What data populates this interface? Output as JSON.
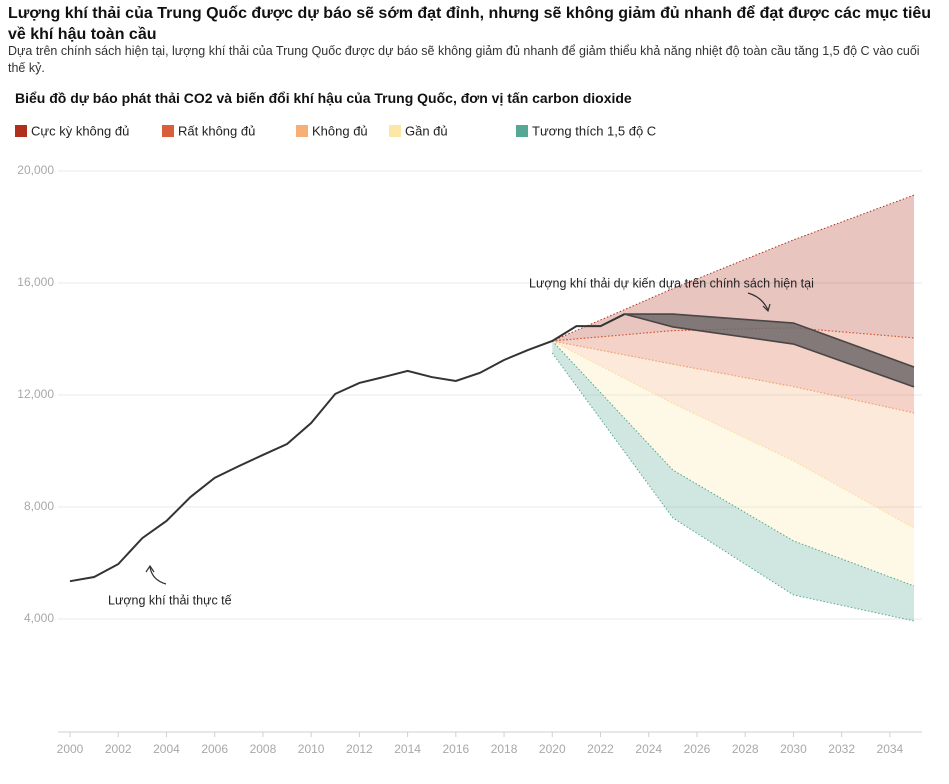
{
  "chart_data": {
    "type": "line",
    "title": "Lượng khí thải của Trung Quốc được dự báo sẽ sớm đạt đỉnh, nhưng sẽ không giảm đủ nhanh để đạt được các mục tiêu về khí hậu toàn cầu",
    "subtitle": "Dựa trên chính sách hiện tại, lượng khí thải của Trung Quốc được dự báo sẽ không giảm đủ nhanh để giảm thiểu khả năng nhiệt độ toàn cầu tăng 1,5 độ C vào cuối thế kỷ.",
    "chart_title": "Biểu đồ dự báo phát thải CO2 và biến đổi khí hậu của Trung Quốc, đơn vị tấn carbon dioxide",
    "xlim": [
      2000,
      2035
    ],
    "xticks": [
      2000,
      2002,
      2004,
      2006,
      2008,
      2010,
      2012,
      2014,
      2016,
      2018,
      2020,
      2022,
      2024,
      2026,
      2028,
      2030,
      2032,
      2034
    ],
    "ylim": [
      0,
      20000
    ],
    "yticks": [
      {
        "value": 4000,
        "label": "4,000"
      },
      {
        "value": 8000,
        "label": "8,000"
      },
      {
        "value": 12000,
        "label": "12,000"
      },
      {
        "value": 16000,
        "label": "16,000"
      },
      {
        "value": 20000,
        "label": "20,000"
      }
    ],
    "grid": true,
    "series": [
      {
        "name": "Lượng khí thải thực tế",
        "color": "#333333",
        "x": [
          2000,
          2001,
          2002,
          2003,
          2004,
          2005,
          2006,
          2007,
          2008,
          2009,
          2010,
          2011,
          2012,
          2013,
          2014,
          2015,
          2016,
          2017,
          2018,
          2019,
          2020,
          2021,
          2022,
          2023
        ],
        "values": [
          5350,
          5500,
          5960,
          6890,
          7500,
          8360,
          9040,
          9460,
          9860,
          10250,
          11000,
          12040,
          12430,
          12640,
          12860,
          12640,
          12500,
          12790,
          13250,
          13610,
          13930,
          14460,
          14460,
          14890
        ]
      }
    ],
    "policy_band": {
      "name": "Lượng khí thải dự kiến dựa trên chính sách hiện tại",
      "color": "#6f6a6a",
      "x": [
        2023,
        2025,
        2030,
        2035
      ],
      "high": [
        14890,
        14890,
        14570,
        13000
      ],
      "low": [
        14890,
        14430,
        13820,
        12290
      ]
    },
    "bands": [
      {
        "name": "Cực kỳ không đủ",
        "color": "#b0301c",
        "x": [
          2020,
          2025,
          2030,
          2035
        ],
        "high": [
          13930,
          15800,
          17540,
          19140
        ],
        "low": [
          13930,
          14300,
          14400,
          14040
        ]
      },
      {
        "name": "Rất không đủ",
        "color": "#d95f3a",
        "x": [
          2020,
          2025,
          2030,
          2035
        ],
        "high": [
          13930,
          14300,
          14400,
          14040
        ],
        "low": [
          13930,
          13100,
          12300,
          11360
        ]
      },
      {
        "name": "Không đủ",
        "color": "#f6b076",
        "x": [
          2020,
          2025,
          2030,
          2035
        ],
        "high": [
          13930,
          13100,
          12300,
          11360
        ],
        "low": [
          13930,
          11700,
          9650,
          7250
        ]
      },
      {
        "name": "Gần đủ",
        "color": "#fde7a6",
        "x": [
          2020,
          2025,
          2030,
          2035
        ],
        "high": [
          13930,
          11700,
          9650,
          7250
        ],
        "low": [
          13930,
          9320,
          6790,
          5180
        ]
      },
      {
        "name": "Tương thích 1,5 độ C",
        "color": "#55a994",
        "x": [
          2020,
          2025,
          2030,
          2035
        ],
        "high": [
          13930,
          9320,
          6790,
          5180
        ],
        "low": [
          13500,
          7610,
          4860,
          3930
        ]
      }
    ]
  }
}
